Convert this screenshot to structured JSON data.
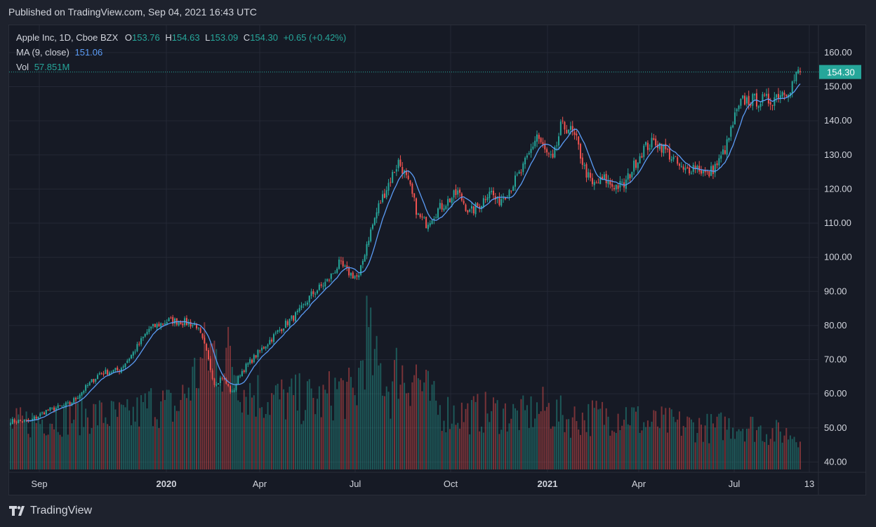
{
  "published": "Published on TradingView.com, Sep 04, 2021 16:43 UTC",
  "brand": "TradingView",
  "legend": {
    "symbol": "Apple Inc, 1D, Cboe BZX",
    "o_label": "O",
    "o_value": "153.76",
    "h_label": "H",
    "h_value": "154.63",
    "l_label": "L",
    "l_value": "153.09",
    "c_label": "C",
    "c_value": "154.30",
    "change": "+0.65 (+0.42%)",
    "ma_label": "MA (9, close)",
    "ma_value": "151.06",
    "vol_label": "Vol",
    "vol_value": "57.851M"
  },
  "colors": {
    "up": "#26a69a",
    "down": "#ef5350",
    "ma": "#5b9cf6",
    "grid": "#242835",
    "text": "#d1d4dc",
    "bg": "#161a25"
  },
  "chart_data": {
    "type": "candlestick",
    "ylim": [
      37,
      168
    ],
    "y_ticks": [
      "160.00",
      "150.00",
      "140.00",
      "130.00",
      "120.00",
      "110.00",
      "100.00",
      "90.00",
      "80.00",
      "70.00",
      "60.00",
      "50.00",
      "40.00"
    ],
    "x_ticks": [
      "Sep",
      "2020",
      "Apr",
      "Jul",
      "Oct",
      "2021",
      "Apr",
      "Jul",
      "13"
    ],
    "last_price_label": "154.30",
    "last_price": 154.3,
    "anchors_day_price": [
      [
        0,
        52
      ],
      [
        10,
        52
      ],
      [
        18,
        55
      ],
      [
        30,
        57
      ],
      [
        40,
        63
      ],
      [
        45,
        66
      ],
      [
        55,
        67
      ],
      [
        62,
        72
      ],
      [
        70,
        79
      ],
      [
        80,
        81.5
      ],
      [
        88,
        81
      ],
      [
        94,
        80
      ],
      [
        98,
        74
      ],
      [
        103,
        63
      ],
      [
        107,
        65
      ],
      [
        112,
        60
      ],
      [
        116,
        66
      ],
      [
        122,
        70
      ],
      [
        130,
        75
      ],
      [
        138,
        80
      ],
      [
        146,
        84
      ],
      [
        152,
        89
      ],
      [
        160,
        93
      ],
      [
        166,
        98
      ],
      [
        172,
        95
      ],
      [
        176,
        94
      ],
      [
        180,
        104
      ],
      [
        186,
        115
      ],
      [
        192,
        123
      ],
      [
        196,
        128
      ],
      [
        198,
        126
      ],
      [
        202,
        120
      ],
      [
        206,
        112
      ],
      [
        210,
        110
      ],
      [
        216,
        114
      ],
      [
        222,
        117
      ],
      [
        226,
        119
      ],
      [
        232,
        113
      ],
      [
        238,
        116
      ],
      [
        242,
        120
      ],
      [
        246,
        116
      ],
      [
        252,
        120
      ],
      [
        258,
        125
      ],
      [
        262,
        130
      ],
      [
        266,
        136
      ],
      [
        270,
        131
      ],
      [
        274,
        128
      ],
      [
        278,
        138
      ],
      [
        282,
        138
      ],
      [
        286,
        134
      ],
      [
        290,
        126
      ],
      [
        294,
        121
      ],
      [
        300,
        123
      ],
      [
        304,
        121
      ],
      [
        310,
        121
      ],
      [
        316,
        128
      ],
      [
        320,
        132
      ],
      [
        326,
        134
      ],
      [
        330,
        132
      ],
      [
        336,
        128
      ],
      [
        340,
        125
      ],
      [
        346,
        127
      ],
      [
        352,
        124
      ],
      [
        358,
        128
      ],
      [
        362,
        133
      ],
      [
        366,
        141
      ],
      [
        370,
        146
      ],
      [
        374,
        146
      ],
      [
        378,
        146
      ],
      [
        384,
        146
      ],
      [
        388,
        148
      ],
      [
        392,
        149
      ],
      [
        394,
        150
      ],
      [
        398,
        154
      ]
    ],
    "volume_peaks_M": [
      [
        0,
        60
      ],
      [
        20,
        70
      ],
      [
        40,
        75
      ],
      [
        60,
        70
      ],
      [
        72,
        90
      ],
      [
        84,
        82
      ],
      [
        98,
        150
      ],
      [
        102,
        162
      ],
      [
        106,
        148
      ],
      [
        112,
        152
      ],
      [
        118,
        110
      ],
      [
        130,
        96
      ],
      [
        146,
        95
      ],
      [
        158,
        93
      ],
      [
        166,
        110
      ],
      [
        174,
        96
      ],
      [
        180,
        185
      ],
      [
        184,
        138
      ],
      [
        188,
        130
      ],
      [
        192,
        105
      ],
      [
        196,
        140
      ],
      [
        200,
        120
      ],
      [
        204,
        135
      ],
      [
        208,
        112
      ],
      [
        216,
        80
      ],
      [
        230,
        75
      ],
      [
        244,
        78
      ],
      [
        258,
        72
      ],
      [
        270,
        83
      ],
      [
        282,
        68
      ],
      [
        296,
        72
      ],
      [
        312,
        76
      ],
      [
        320,
        62
      ],
      [
        330,
        63
      ],
      [
        340,
        60
      ],
      [
        350,
        58
      ],
      [
        356,
        55
      ],
      [
        360,
        60
      ],
      [
        366,
        61
      ],
      [
        372,
        60
      ],
      [
        384,
        50
      ],
      [
        398,
        48
      ]
    ],
    "volume_ylim_M": [
      0,
      440
    ]
  }
}
